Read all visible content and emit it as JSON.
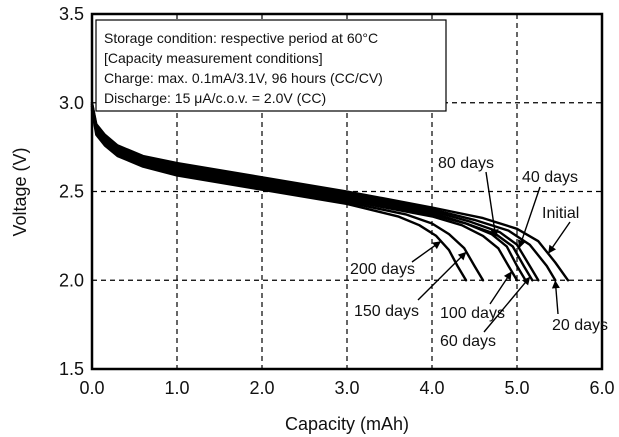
{
  "chart_data": {
    "type": "line",
    "xlabel": "Capacity (mAh)",
    "ylabel": "Voltage (V)",
    "xlim": [
      0,
      6.0
    ],
    "ylim": [
      1.5,
      3.5
    ],
    "xticks": [
      "0.0",
      "1.0",
      "2.0",
      "3.0",
      "4.0",
      "5.0",
      "6.0"
    ],
    "yticks": [
      "1.5",
      "2.0",
      "2.5",
      "3.0",
      "3.5"
    ],
    "grid": true,
    "annotation_lines": [
      "Storage condition: respective period at 60°C",
      "[Capacity measurement conditions]",
      "Charge: max. 0.1mA/3.1V, 96 hours (CC/CV)",
      "Discharge: 15 μA/c.o.v. = 2.0V (CC)"
    ],
    "series": [
      {
        "label": "Initial",
        "x": [
          0.0,
          0.05,
          0.15,
          0.3,
          0.6,
          1.0,
          2.0,
          3.0,
          4.0,
          4.6,
          5.0,
          5.25,
          5.45,
          5.6
        ],
        "y": [
          3.0,
          2.88,
          2.82,
          2.76,
          2.7,
          2.66,
          2.58,
          2.5,
          2.41,
          2.35,
          2.29,
          2.22,
          2.1,
          2.0
        ]
      },
      {
        "label": "20 days",
        "x": [
          0.0,
          0.05,
          0.15,
          0.3,
          0.6,
          1.0,
          2.0,
          3.0,
          4.0,
          4.5,
          4.9,
          5.15,
          5.35,
          5.45
        ],
        "y": [
          3.0,
          2.87,
          2.81,
          2.75,
          2.69,
          2.65,
          2.57,
          2.49,
          2.4,
          2.34,
          2.28,
          2.2,
          2.08,
          2.0
        ]
      },
      {
        "label": "40 days",
        "x": [
          0.0,
          0.05,
          0.15,
          0.3,
          0.6,
          1.0,
          2.0,
          3.0,
          4.0,
          4.45,
          4.8,
          5.0,
          5.15,
          5.25
        ],
        "y": [
          2.99,
          2.86,
          2.8,
          2.74,
          2.68,
          2.64,
          2.56,
          2.48,
          2.39,
          2.33,
          2.27,
          2.2,
          2.08,
          2.0
        ]
      },
      {
        "label": "60 days",
        "x": [
          0.0,
          0.05,
          0.15,
          0.3,
          0.6,
          1.0,
          2.0,
          3.0,
          4.0,
          4.4,
          4.75,
          4.95,
          5.08,
          5.18
        ],
        "y": [
          2.99,
          2.85,
          2.79,
          2.73,
          2.67,
          2.63,
          2.55,
          2.47,
          2.38,
          2.32,
          2.26,
          2.19,
          2.08,
          2.0
        ]
      },
      {
        "label": "80 days",
        "x": [
          0.0,
          0.05,
          0.15,
          0.3,
          0.6,
          1.0,
          2.0,
          3.0,
          4.0,
          4.4,
          4.7,
          4.88,
          5.0,
          5.1
        ],
        "y": [
          2.98,
          2.85,
          2.79,
          2.73,
          2.67,
          2.62,
          2.54,
          2.46,
          2.37,
          2.32,
          2.26,
          2.19,
          2.08,
          2.0
        ]
      },
      {
        "label": "100 days",
        "x": [
          0.0,
          0.05,
          0.15,
          0.3,
          0.6,
          1.0,
          2.0,
          3.0,
          4.0,
          4.35,
          4.6,
          4.78,
          4.9,
          5.0
        ],
        "y": [
          2.98,
          2.84,
          2.78,
          2.72,
          2.66,
          2.61,
          2.53,
          2.45,
          2.36,
          2.31,
          2.25,
          2.18,
          2.08,
          2.0
        ]
      },
      {
        "label": "150 days",
        "x": [
          0.0,
          0.05,
          0.15,
          0.3,
          0.6,
          1.0,
          2.0,
          3.0,
          3.7,
          4.0,
          4.2,
          4.38,
          4.5,
          4.6
        ],
        "y": [
          2.97,
          2.83,
          2.77,
          2.71,
          2.65,
          2.6,
          2.52,
          2.44,
          2.37,
          2.32,
          2.26,
          2.18,
          2.08,
          2.0
        ]
      },
      {
        "label": "200 days",
        "x": [
          0.0,
          0.05,
          0.15,
          0.3,
          0.6,
          1.0,
          2.0,
          3.0,
          3.6,
          3.85,
          4.05,
          4.2,
          4.3,
          4.4
        ],
        "y": [
          2.96,
          2.82,
          2.76,
          2.7,
          2.64,
          2.59,
          2.51,
          2.43,
          2.36,
          2.31,
          2.25,
          2.17,
          2.08,
          2.0
        ]
      }
    ]
  }
}
